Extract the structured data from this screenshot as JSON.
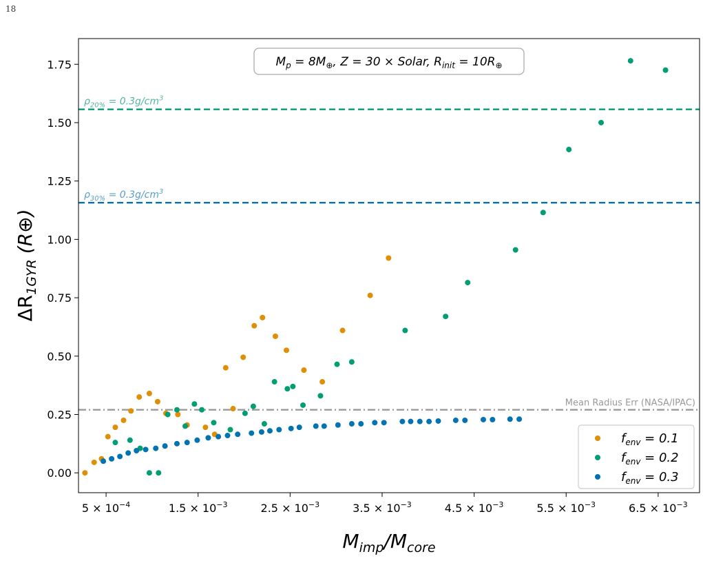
{
  "page_number": "18",
  "chart_data": {
    "type": "scatter",
    "xlabel_main": "M",
    "xlabel_sub1": "imp",
    "xlabel_sep": "/M",
    "xlabel_sub2": "core",
    "ylabel_main": "ΔR",
    "ylabel_sub": "1GYR",
    "ylabel_unit": "(R⊕)",
    "annotation": "M_p = 8M⊕, Z = 30 × Solar, R_init = 10R⊕",
    "xlim": [
      0.0002,
      0.00695
    ],
    "ylim": [
      -0.085,
      1.86
    ],
    "x_ticks": [
      {
        "value": 0.0005,
        "mant": "5 × 10",
        "exp": "−4"
      },
      {
        "value": 0.0015,
        "mant": "1.5 × 10",
        "exp": "−3"
      },
      {
        "value": 0.0025,
        "mant": "2.5 × 10",
        "exp": "−3"
      },
      {
        "value": 0.0035,
        "mant": "3.5 × 10",
        "exp": "−3"
      },
      {
        "value": 0.0045,
        "mant": "4.5 × 10",
        "exp": "−3"
      },
      {
        "value": 0.0055,
        "mant": "5.5 × 10",
        "exp": "−3"
      },
      {
        "value": 0.0065,
        "mant": "6.5 × 10",
        "exp": "−3"
      }
    ],
    "y_ticks": [
      "0.00",
      "0.25",
      "0.50",
      "0.75",
      "1.00",
      "1.25",
      "1.50",
      "1.75"
    ],
    "hlines": [
      {
        "y": 1.557,
        "color": "#029e73",
        "style": "dashed",
        "label_pre": "ρ",
        "label_sub": "20%",
        "label_post": " = 0.3g/cm",
        "label_sup": "3",
        "label_color": "#56b4a0"
      },
      {
        "y": 1.157,
        "color": "#0173b2",
        "style": "dashed",
        "label_pre": "ρ",
        "label_sub": "30%",
        "label_post": " = 0.3g/cm",
        "label_sup": "3",
        "label_color": "#5a9fc9"
      },
      {
        "y": 0.27,
        "color": "#999999",
        "style": "dashdot",
        "label": "Mean Radius Err (NASA/IPAC)",
        "label_color": "#999999"
      }
    ],
    "legend_position": "bottom-right",
    "series": [
      {
        "name": "f_env = 0.1",
        "legend_sub": "env",
        "legend_post": " = 0.1",
        "color": "#de8f05",
        "points": [
          [
            0.00027,
            0.0
          ],
          [
            0.00037,
            0.045
          ],
          [
            0.00045,
            0.06
          ],
          [
            0.00052,
            0.155
          ],
          [
            0.0006,
            0.195
          ],
          [
            0.00069,
            0.225
          ],
          [
            0.00077,
            0.265
          ],
          [
            0.00086,
            0.325
          ],
          [
            0.00097,
            0.34
          ],
          [
            0.00106,
            0.305
          ],
          [
            0.00115,
            0.255
          ],
          [
            0.00128,
            0.25
          ],
          [
            0.00138,
            0.205
          ],
          [
            0.00158,
            0.195
          ],
          [
            0.00168,
            0.165
          ],
          [
            0.0018,
            0.45
          ],
          [
            0.00188,
            0.275
          ],
          [
            0.00199,
            0.495
          ],
          [
            0.00211,
            0.63
          ],
          [
            0.0022,
            0.665
          ],
          [
            0.00234,
            0.585
          ],
          [
            0.00246,
            0.525
          ],
          [
            0.00265,
            0.44
          ],
          [
            0.00285,
            0.39
          ],
          [
            0.00307,
            0.61
          ],
          [
            0.00337,
            0.76
          ],
          [
            0.00357,
            0.92
          ]
        ]
      },
      {
        "name": "f_env = 0.2",
        "legend_sub": "env",
        "legend_post": " = 0.2",
        "color": "#029e73",
        "points": [
          [
            0.0006,
            0.13
          ],
          [
            0.00076,
            0.14
          ],
          [
            0.00087,
            0.105
          ],
          [
            0.00097,
            0.0
          ],
          [
            0.00107,
            0.0
          ],
          [
            0.00117,
            0.25
          ],
          [
            0.00127,
            0.27
          ],
          [
            0.00136,
            0.2
          ],
          [
            0.00146,
            0.295
          ],
          [
            0.00154,
            0.27
          ],
          [
            0.00167,
            0.215
          ],
          [
            0.00185,
            0.185
          ],
          [
            0.00201,
            0.255
          ],
          [
            0.0021,
            0.285
          ],
          [
            0.00222,
            0.21
          ],
          [
            0.00233,
            0.39
          ],
          [
            0.00247,
            0.36
          ],
          [
            0.00253,
            0.37
          ],
          [
            0.00264,
            0.29
          ],
          [
            0.00283,
            0.33
          ],
          [
            0.00301,
            0.465
          ],
          [
            0.00317,
            0.475
          ],
          [
            0.00375,
            0.61
          ],
          [
            0.00419,
            0.67
          ],
          [
            0.00443,
            0.815
          ],
          [
            0.00495,
            0.955
          ],
          [
            0.00525,
            1.115
          ],
          [
            0.00553,
            1.385
          ],
          [
            0.00588,
            1.5
          ],
          [
            0.0062,
            1.765
          ],
          [
            0.00658,
            1.725
          ]
        ]
      },
      {
        "name": "f_env = 0.3",
        "legend_sub": "env",
        "legend_post": " = 0.3",
        "color": "#0173b2",
        "points": [
          [
            0.00047,
            0.05
          ],
          [
            0.00056,
            0.06
          ],
          [
            0.00065,
            0.07
          ],
          [
            0.00074,
            0.085
          ],
          [
            0.00083,
            0.095
          ],
          [
            0.00093,
            0.1
          ],
          [
            0.00104,
            0.105
          ],
          [
            0.00114,
            0.115
          ],
          [
            0.00127,
            0.125
          ],
          [
            0.00138,
            0.13
          ],
          [
            0.00149,
            0.14
          ],
          [
            0.00161,
            0.15
          ],
          [
            0.00172,
            0.155
          ],
          [
            0.00182,
            0.16
          ],
          [
            0.00193,
            0.165
          ],
          [
            0.00208,
            0.17
          ],
          [
            0.00219,
            0.175
          ],
          [
            0.00228,
            0.18
          ],
          [
            0.00238,
            0.185
          ],
          [
            0.00251,
            0.19
          ],
          [
            0.0026,
            0.195
          ],
          [
            0.00278,
            0.2
          ],
          [
            0.00287,
            0.2
          ],
          [
            0.00302,
            0.205
          ],
          [
            0.00317,
            0.21
          ],
          [
            0.00327,
            0.21
          ],
          [
            0.00342,
            0.215
          ],
          [
            0.00352,
            0.215
          ],
          [
            0.00372,
            0.22
          ],
          [
            0.00381,
            0.22
          ],
          [
            0.00391,
            0.22
          ],
          [
            0.00401,
            0.22
          ],
          [
            0.00411,
            0.222
          ],
          [
            0.0043,
            0.225
          ],
          [
            0.0044,
            0.225
          ],
          [
            0.0046,
            0.228
          ],
          [
            0.0047,
            0.228
          ],
          [
            0.00489,
            0.23
          ],
          [
            0.00499,
            0.23
          ]
        ]
      }
    ]
  }
}
